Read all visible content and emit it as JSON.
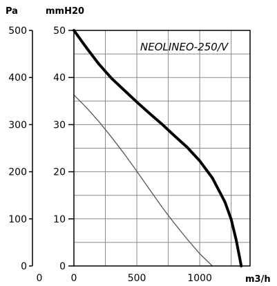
{
  "chart_data": {
    "type": "line",
    "title": "",
    "model_label": "NEOLINEO-250/V",
    "xlabel": "m3/h",
    "ylabel_left": "Pa",
    "ylabel_right": "mmH20",
    "xlim": [
      0,
      1400
    ],
    "ylim_pa": [
      0,
      500
    ],
    "ylim_mmh2o": [
      0,
      50
    ],
    "x_ticks": [
      "0",
      "500",
      "1000"
    ],
    "pa_ticks": [
      "0",
      "100",
      "200",
      "300",
      "400",
      "500"
    ],
    "mmh2o_ticks": [
      "0",
      "10",
      "20",
      "30",
      "40",
      "50"
    ],
    "grid": true,
    "series": [
      {
        "color": "#000000",
        "style": "thick",
        "x": [
          0,
          100,
          200,
          300,
          400,
          500,
          600,
          700,
          800,
          900,
          1000,
          1100,
          1200,
          1250,
          1290,
          1330
        ],
        "y_pa": [
          500,
          463,
          428,
          398,
          373,
          348,
          324,
          301,
          276,
          252,
          223,
          187,
          136,
          99,
          55,
          0
        ]
      },
      {
        "color": "#555555",
        "style": "thin",
        "x": [
          0,
          100,
          200,
          300,
          400,
          500,
          600,
          700,
          800,
          900,
          1000,
          1100
        ],
        "y_pa": [
          363,
          336,
          306,
          273,
          238,
          201,
          163,
          125,
          90,
          57,
          26,
          0
        ]
      }
    ]
  }
}
